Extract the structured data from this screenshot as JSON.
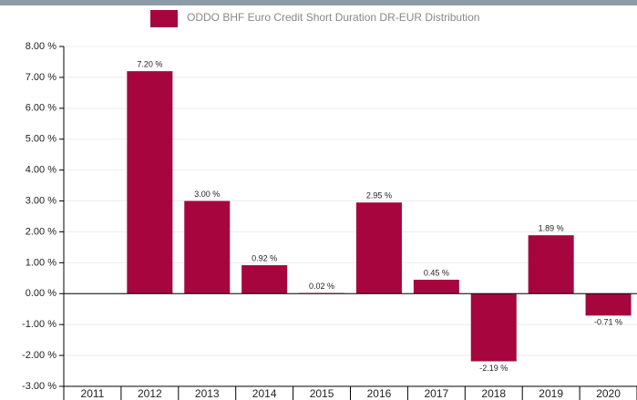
{
  "chart_data": {
    "type": "bar",
    "legend": "ODDO BHF Euro Credit Short Duration  DR-EUR Distribution",
    "categories": [
      "2011",
      "2012",
      "2013",
      "2014",
      "2015",
      "2016",
      "2017",
      "2018",
      "2019",
      "2020"
    ],
    "values": [
      null,
      7.2,
      3.0,
      0.92,
      0.02,
      2.95,
      0.45,
      -2.19,
      1.89,
      -0.71
    ],
    "value_labels": [
      null,
      "7.20 %",
      "3.00 %",
      "0.92 %",
      "0.02 %",
      "2.95 %",
      "0.45 %",
      "-2.19 %",
      "1.89 %",
      "-0.71 %"
    ],
    "color": "#a6063d",
    "ylim": [
      -3,
      8
    ],
    "yticks": [
      {
        "value": 8,
        "label": "8.00 %"
      },
      {
        "value": 7,
        "label": "7.00 %"
      },
      {
        "value": 6,
        "label": "6.00 %"
      },
      {
        "value": 5,
        "label": "5.00 %"
      },
      {
        "value": 4,
        "label": "4.00 %"
      },
      {
        "value": 3,
        "label": "3.00 %"
      },
      {
        "value": 2,
        "label": "2.00 %"
      },
      {
        "value": 1,
        "label": "1.00 %"
      },
      {
        "value": 0,
        "label": "0.00 %"
      },
      {
        "value": -1,
        "label": "-1.00 %"
      },
      {
        "value": -2,
        "label": "-2.00 %"
      },
      {
        "value": -3,
        "label": "-3.00 %"
      }
    ],
    "grid": true
  }
}
